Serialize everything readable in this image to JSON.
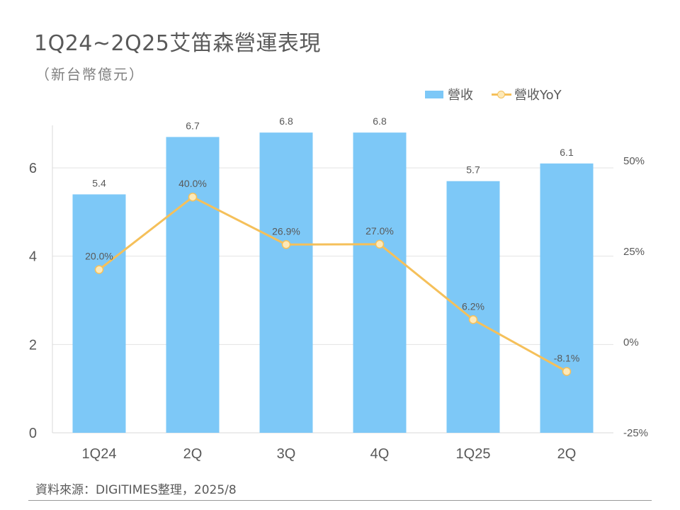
{
  "header": {
    "title": "1Q24~2Q25艾笛森營運表現",
    "subtitle": "（新台幣億元）"
  },
  "legend": {
    "bar_label": "營收",
    "line_label": "營收YoY"
  },
  "source": "資料來源：DIGITIMES整理，2025/8",
  "colors": {
    "bar": "#7dc8f7",
    "line": "#f5c05a",
    "marker_fill": "#fde9b8"
  },
  "chart_data": {
    "type": "bar",
    "categories": [
      "1Q24",
      "2Q",
      "3Q",
      "4Q",
      "1Q25",
      "2Q"
    ],
    "series": [
      {
        "name": "營收",
        "type": "bar",
        "axis": "left",
        "values": [
          5.4,
          6.7,
          6.8,
          6.8,
          5.7,
          6.1
        ],
        "labels": [
          "5.4",
          "6.7",
          "6.8",
          "6.8",
          "5.7",
          "6.1"
        ]
      },
      {
        "name": "營收YoY",
        "type": "line",
        "axis": "right",
        "values": [
          20.0,
          40.0,
          26.9,
          27.0,
          6.2,
          -8.1
        ],
        "labels": [
          "20.0%",
          "40.0%",
          "26.9%",
          "27.0%",
          "6.2%",
          "-8.1%"
        ]
      }
    ],
    "y_left": {
      "ticks": [
        "0",
        "2",
        "4",
        "6"
      ],
      "tick_values": [
        0,
        2,
        4,
        6
      ]
    },
    "y_right": {
      "ticks": [
        "-25%",
        "0%",
        "25%",
        "50%"
      ],
      "tick_values": [
        -25,
        0,
        25,
        50
      ]
    },
    "grid": true,
    "legend_position": "top-right"
  }
}
